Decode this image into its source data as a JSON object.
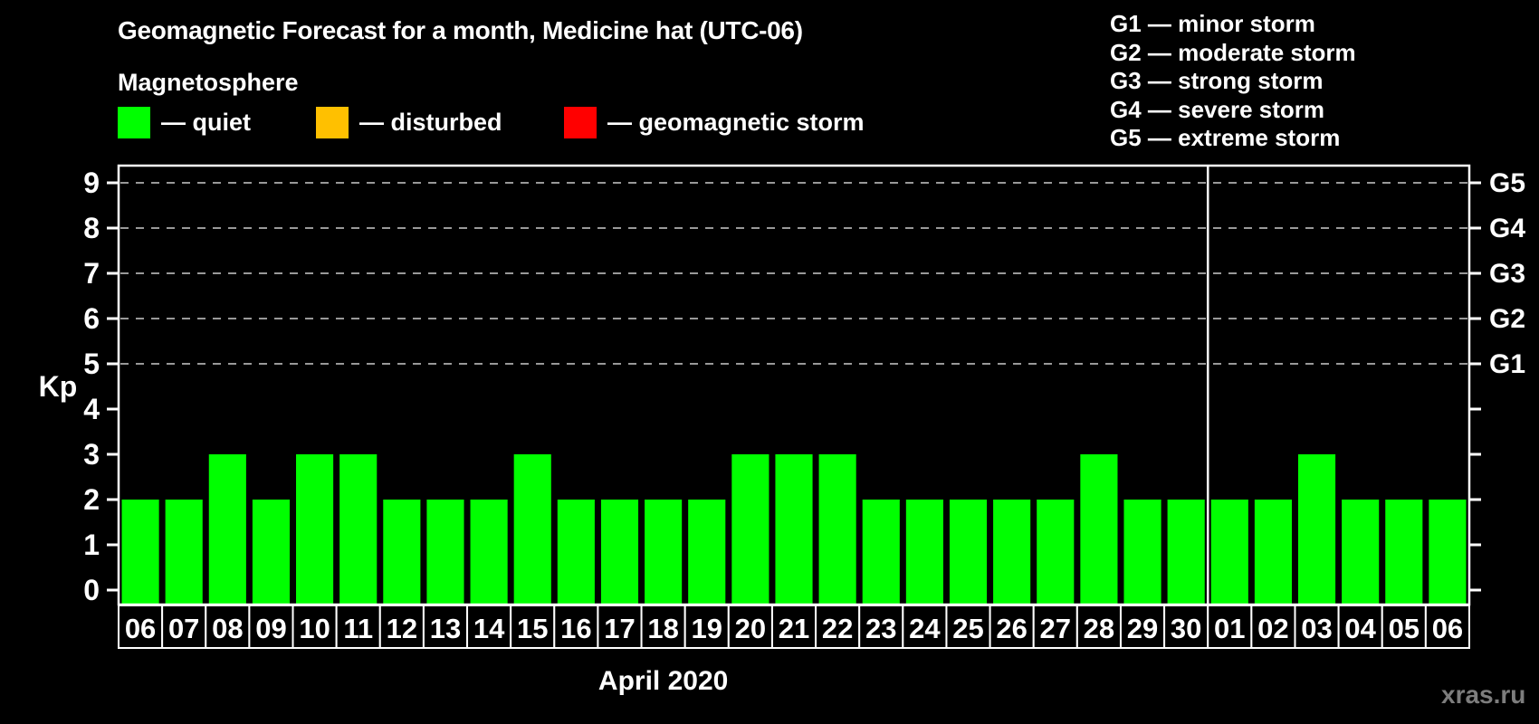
{
  "header": {
    "title": "Geomagnetic Forecast for a month, Medicine hat (UTC-06)",
    "subtitle": "Magnetosphere"
  },
  "dash": "—",
  "magnetosphere_legend": {
    "items": [
      {
        "label": "quiet",
        "color": "#00ff00"
      },
      {
        "label": "disturbed",
        "color": "#ffc000"
      },
      {
        "label": "geomagnetic storm",
        "color": "#ff0000"
      }
    ]
  },
  "g_scale_legend": {
    "items": [
      {
        "code": "G1",
        "name": "minor storm"
      },
      {
        "code": "G2",
        "name": "moderate storm"
      },
      {
        "code": "G3",
        "name": "strong storm"
      },
      {
        "code": "G4",
        "name": "severe storm"
      },
      {
        "code": "G5",
        "name": "extreme storm"
      }
    ]
  },
  "chart_data": {
    "type": "bar",
    "title": "Geomagnetic Forecast for a month, Medicine hat (UTC-06)",
    "ylabel": "Kp",
    "ylim": [
      0,
      9
    ],
    "yticks": [
      0,
      1,
      2,
      3,
      4,
      5,
      6,
      7,
      8,
      9
    ],
    "grid_levels": [
      5,
      6,
      7,
      8,
      9
    ],
    "grid_style": "dashed",
    "legend_position": "top-left",
    "right_axis": [
      {
        "kp": 5,
        "label": "G1"
      },
      {
        "kp": 6,
        "label": "G2"
      },
      {
        "kp": 7,
        "label": "G3"
      },
      {
        "kp": 8,
        "label": "G4"
      },
      {
        "kp": 9,
        "label": "G5"
      }
    ],
    "categories": [
      "06",
      "07",
      "08",
      "09",
      "10",
      "11",
      "12",
      "13",
      "14",
      "15",
      "16",
      "17",
      "18",
      "19",
      "20",
      "21",
      "22",
      "23",
      "24",
      "25",
      "26",
      "27",
      "28",
      "29",
      "30",
      "01",
      "02",
      "03",
      "04",
      "05",
      "06"
    ],
    "values": [
      2,
      2,
      3,
      2,
      3,
      3,
      2,
      2,
      2,
      3,
      2,
      2,
      2,
      2,
      3,
      3,
      3,
      2,
      2,
      2,
      2,
      2,
      3,
      2,
      2,
      2,
      2,
      3,
      2,
      2,
      2
    ],
    "month_boundary_index": 25,
    "month_label": "April 2020",
    "bar_color": "#00ff00"
  },
  "watermark": "xras.ru",
  "colors": {
    "background": "#000000",
    "text": "#ffffff",
    "grid": "#999999",
    "axis": "#ffffff",
    "quiet": "#00ff00",
    "disturbed": "#ffc000",
    "storm": "#ff0000",
    "watermark": "#7d7d7d"
  }
}
